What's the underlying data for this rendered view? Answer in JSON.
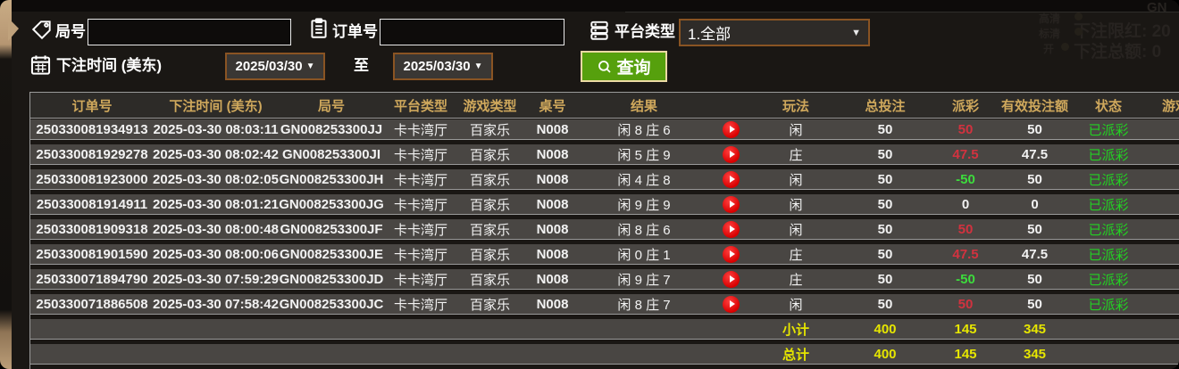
{
  "filters": {
    "round_label": "局号",
    "round_value": "",
    "order_label": "订单号",
    "order_value": "",
    "platform_label": "平台类型",
    "platform_value": "1.全部",
    "bet_time_label": "下注时间 (美东)",
    "date_from": "2025/03/30",
    "to_label": "至",
    "date_to": "2025/03/30",
    "query_label": "查询"
  },
  "background_hud": {
    "gn": "GN",
    "hd": "高清",
    "sd": "标清",
    "on": "开",
    "bet_limit": "下注限红: 20",
    "bet_total": "下注总额: 0"
  },
  "table": {
    "headers": [
      "订单号",
      "下注时间 (美东)",
      "局号",
      "平台类型",
      "游戏类型",
      "桌号",
      "结果",
      "玩法",
      "总投注",
      "派彩",
      "有效投注额",
      "状态",
      "游戏"
    ],
    "rows": [
      {
        "order": "250330081934913",
        "time": "2025-03-30 08:03:11",
        "round": "GN008253300JJ",
        "platform": "卡卡湾厅",
        "game": "百家乐",
        "table": "N008",
        "result": "闲 8 庄 6",
        "play": "闲",
        "bet": "50",
        "payout": "50",
        "payout_color": "red",
        "valid": "50",
        "status": "已派彩"
      },
      {
        "order": "250330081929278",
        "time": "2025-03-30 08:02:42",
        "round": "GN008253300JI",
        "platform": "卡卡湾厅",
        "game": "百家乐",
        "table": "N008",
        "result": "闲 5 庄 9",
        "play": "庄",
        "bet": "50",
        "payout": "47.5",
        "payout_color": "red",
        "valid": "47.5",
        "status": "已派彩"
      },
      {
        "order": "250330081923000",
        "time": "2025-03-30 08:02:05",
        "round": "GN008253300JH",
        "platform": "卡卡湾厅",
        "game": "百家乐",
        "table": "N008",
        "result": "闲 4 庄 8",
        "play": "闲",
        "bet": "50",
        "payout": "-50",
        "payout_color": "green",
        "valid": "50",
        "status": "已派彩"
      },
      {
        "order": "250330081914911",
        "time": "2025-03-30 08:01:21",
        "round": "GN008253300JG",
        "platform": "卡卡湾厅",
        "game": "百家乐",
        "table": "N008",
        "result": "闲 9 庄 9",
        "play": "闲",
        "bet": "50",
        "payout": "0",
        "payout_color": "white",
        "valid": "0",
        "status": "已派彩"
      },
      {
        "order": "250330081909318",
        "time": "2025-03-30 08:00:48",
        "round": "GN008253300JF",
        "platform": "卡卡湾厅",
        "game": "百家乐",
        "table": "N008",
        "result": "闲 8 庄 6",
        "play": "闲",
        "bet": "50",
        "payout": "50",
        "payout_color": "red",
        "valid": "50",
        "status": "已派彩"
      },
      {
        "order": "250330081901590",
        "time": "2025-03-30 08:00:06",
        "round": "GN008253300JE",
        "platform": "卡卡湾厅",
        "game": "百家乐",
        "table": "N008",
        "result": "闲 0 庄 1",
        "play": "庄",
        "bet": "50",
        "payout": "47.5",
        "payout_color": "red",
        "valid": "47.5",
        "status": "已派彩"
      },
      {
        "order": "250330071894790",
        "time": "2025-03-30 07:59:29",
        "round": "GN008253300JD",
        "platform": "卡卡湾厅",
        "game": "百家乐",
        "table": "N008",
        "result": "闲 9 庄 7",
        "play": "庄",
        "bet": "50",
        "payout": "-50",
        "payout_color": "green",
        "valid": "50",
        "status": "已派彩"
      },
      {
        "order": "250330071886508",
        "time": "2025-03-30 07:58:42",
        "round": "GN008253300JC",
        "platform": "卡卡湾厅",
        "game": "百家乐",
        "table": "N008",
        "result": "闲 8 庄 7",
        "play": "闲",
        "bet": "50",
        "payout": "50",
        "payout_color": "red",
        "valid": "50",
        "status": "已派彩"
      }
    ],
    "subtotal": {
      "label": "小计",
      "bet": "400",
      "payout": "145",
      "valid": "345"
    },
    "total": {
      "label": "总计",
      "bet": "400",
      "payout": "145",
      "valid": "345"
    }
  },
  "colors": {
    "header_gold": "#cfa85c",
    "row_gray": "#494643",
    "payout_win_red": "#d2323f",
    "payout_lose_green": "#3ddc3d",
    "status_green": "#23d123",
    "totals_yellow": "#e6e600",
    "query_green": "#56a00d",
    "brown_border": "#8a5423",
    "tan_edge": "#c9ac85"
  }
}
